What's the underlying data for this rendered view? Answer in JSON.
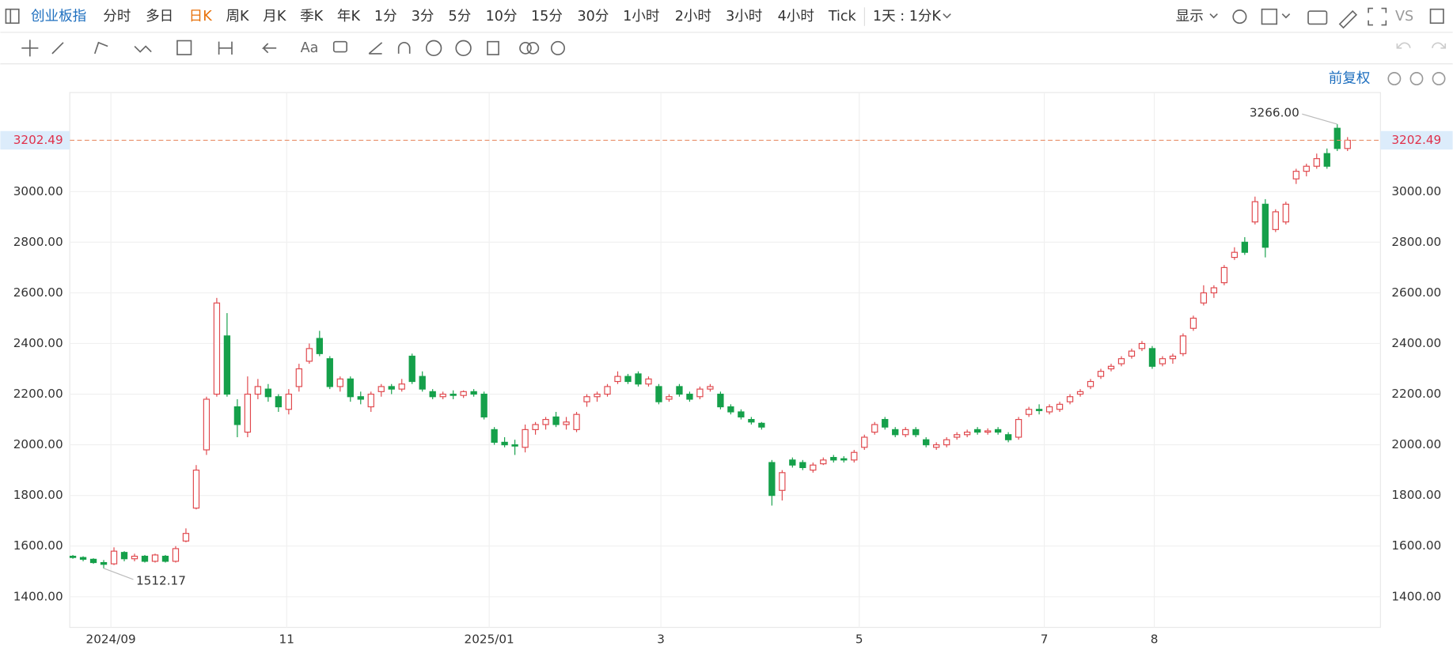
{
  "toolbar": {
    "symbol": "创业板指",
    "periods": [
      "分时",
      "多日",
      "日K",
      "周K",
      "月K",
      "季K",
      "年K",
      "1分",
      "3分",
      "5分",
      "10分",
      "15分",
      "30分",
      "1小时",
      "2小时",
      "3小时",
      "4小时",
      "Tick"
    ],
    "active_period": 2,
    "interval": "1天 : 1分K",
    "display": "显示"
  },
  "drawing_toolbar": {
    "text_tool": "Aa",
    "brand": "VS"
  },
  "adjust": "前复权",
  "chart_data": {
    "type": "candlestick",
    "up_color": "#e0474c",
    "down_color": "#15a04a",
    "grid": true,
    "xlim": [
      -0.3,
      127.2
    ],
    "xticks": [
      {
        "value": 3.7,
        "label": "2024/09"
      },
      {
        "value": 20.8,
        "label": "11"
      },
      {
        "value": 40.5,
        "label": "2025/01"
      },
      {
        "value": 57.2,
        "label": "3"
      },
      {
        "value": 76.5,
        "label": "5"
      },
      {
        "value": 94.5,
        "label": "7"
      },
      {
        "value": 105.2,
        "label": "8"
      }
    ],
    "ylim": [
      1279,
      3391
    ],
    "yticks": [
      {
        "value": 1400,
        "label": "1400.00"
      },
      {
        "value": 1600,
        "label": "1600.00"
      },
      {
        "value": 1800,
        "label": "1800.00"
      },
      {
        "value": 2000,
        "label": "2000.00"
      },
      {
        "value": 2200,
        "label": "2200.00"
      },
      {
        "value": 2400,
        "label": "2400.00"
      },
      {
        "value": 2600,
        "label": "2600.00"
      },
      {
        "value": 2800,
        "label": "2800.00"
      },
      {
        "value": 3000,
        "label": "3000.00"
      }
    ],
    "last_price": {
      "value": 3202.49,
      "label": "3202.49"
    },
    "max_label": {
      "value": 3266,
      "label": "3266.00"
    },
    "min_label": {
      "value": 1512.17,
      "label": "1512.17"
    },
    "candles": [
      [
        1560,
        1565,
        1550,
        1555
      ],
      [
        1555,
        1560,
        1540,
        1548
      ],
      [
        1548,
        1552,
        1530,
        1535
      ],
      [
        1535,
        1545,
        1512.17,
        1528
      ],
      [
        1530,
        1595,
        1525,
        1580
      ],
      [
        1575,
        1580,
        1540,
        1550
      ],
      [
        1550,
        1570,
        1540,
        1560
      ],
      [
        1560,
        1565,
        1535,
        1540
      ],
      [
        1540,
        1570,
        1535,
        1565
      ],
      [
        1560,
        1565,
        1535,
        1540
      ],
      [
        1540,
        1600,
        1535,
        1590
      ],
      [
        1620,
        1670,
        1615,
        1650
      ],
      [
        1750,
        1920,
        1745,
        1900
      ],
      [
        1980,
        2190,
        1960,
        2180
      ],
      [
        2200,
        2580,
        2190,
        2560
      ],
      [
        2430,
        2520,
        2190,
        2200
      ],
      [
        2150,
        2180,
        2030,
        2080
      ],
      [
        2050,
        2270,
        2030,
        2200
      ],
      [
        2200,
        2260,
        2180,
        2230
      ],
      [
        2220,
        2240,
        2170,
        2190
      ],
      [
        2190,
        2200,
        2130,
        2150
      ],
      [
        2140,
        2220,
        2120,
        2200
      ],
      [
        2230,
        2320,
        2210,
        2300
      ],
      [
        2330,
        2400,
        2320,
        2380
      ],
      [
        2420,
        2450,
        2350,
        2360
      ],
      [
        2340,
        2350,
        2220,
        2230
      ],
      [
        2230,
        2270,
        2210,
        2260
      ],
      [
        2260,
        2270,
        2170,
        2190
      ],
      [
        2190,
        2210,
        2160,
        2180
      ],
      [
        2150,
        2210,
        2130,
        2200
      ],
      [
        2210,
        2240,
        2190,
        2230
      ],
      [
        2230,
        2240,
        2200,
        2220
      ],
      [
        2220,
        2260,
        2210,
        2240
      ],
      [
        2350,
        2360,
        2240,
        2250
      ],
      [
        2270,
        2290,
        2210,
        2220
      ],
      [
        2210,
        2220,
        2180,
        2190
      ],
      [
        2190,
        2210,
        2180,
        2200
      ],
      [
        2200,
        2215,
        2180,
        2195
      ],
      [
        2195,
        2215,
        2185,
        2210
      ],
      [
        2210,
        2220,
        2190,
        2200
      ],
      [
        2200,
        2210,
        2100,
        2110
      ],
      [
        2060,
        2070,
        2000,
        2010
      ],
      [
        2010,
        2030,
        1990,
        2000
      ],
      [
        2000,
        2020,
        1960,
        1995
      ],
      [
        1990,
        2080,
        1970,
        2060
      ],
      [
        2060,
        2090,
        2040,
        2080
      ],
      [
        2080,
        2110,
        2060,
        2100
      ],
      [
        2110,
        2130,
        2070,
        2080
      ],
      [
        2080,
        2110,
        2060,
        2090
      ],
      [
        2060,
        2130,
        2050,
        2120
      ],
      [
        2170,
        2200,
        2150,
        2190
      ],
      [
        2190,
        2210,
        2170,
        2200
      ],
      [
        2200,
        2240,
        2190,
        2230
      ],
      [
        2250,
        2290,
        2240,
        2270
      ],
      [
        2270,
        2280,
        2240,
        2250
      ],
      [
        2280,
        2290,
        2230,
        2240
      ],
      [
        2240,
        2270,
        2230,
        2260
      ],
      [
        2230,
        2240,
        2160,
        2170
      ],
      [
        2180,
        2200,
        2170,
        2190
      ],
      [
        2230,
        2240,
        2190,
        2200
      ],
      [
        2200,
        2210,
        2170,
        2180
      ],
      [
        2190,
        2230,
        2180,
        2220
      ],
      [
        2220,
        2240,
        2210,
        2230
      ],
      [
        2200,
        2210,
        2140,
        2150
      ],
      [
        2150,
        2160,
        2120,
        2130
      ],
      [
        2130,
        2140,
        2100,
        2110
      ],
      [
        2100,
        2110,
        2080,
        2090
      ],
      [
        2085,
        2090,
        2060,
        2070
      ],
      [
        1930,
        1940,
        1760,
        1800
      ],
      [
        1820,
        1900,
        1780,
        1890
      ],
      [
        1940,
        1950,
        1910,
        1920
      ],
      [
        1930,
        1940,
        1900,
        1910
      ],
      [
        1900,
        1930,
        1890,
        1920
      ],
      [
        1925,
        1950,
        1920,
        1940
      ],
      [
        1950,
        1960,
        1930,
        1940
      ],
      [
        1945,
        1955,
        1930,
        1940
      ],
      [
        1940,
        1980,
        1930,
        1970
      ],
      [
        1990,
        2040,
        1980,
        2030
      ],
      [
        2050,
        2090,
        2040,
        2080
      ],
      [
        2100,
        2110,
        2060,
        2070
      ],
      [
        2060,
        2070,
        2030,
        2040
      ],
      [
        2040,
        2070,
        2030,
        2060
      ],
      [
        2060,
        2070,
        2030,
        2040
      ],
      [
        2020,
        2030,
        1990,
        2000
      ],
      [
        1990,
        2010,
        1980,
        2000
      ],
      [
        2000,
        2030,
        1990,
        2020
      ],
      [
        2030,
        2050,
        2020,
        2040
      ],
      [
        2040,
        2060,
        2030,
        2050
      ],
      [
        2060,
        2070,
        2040,
        2050
      ],
      [
        2050,
        2065,
        2040,
        2055
      ],
      [
        2060,
        2070,
        2040,
        2050
      ],
      [
        2040,
        2050,
        2010,
        2020
      ],
      [
        2030,
        2110,
        2020,
        2100
      ],
      [
        2120,
        2150,
        2110,
        2140
      ],
      [
        2140,
        2160,
        2120,
        2135
      ],
      [
        2130,
        2160,
        2120,
        2150
      ],
      [
        2140,
        2170,
        2130,
        2160
      ],
      [
        2170,
        2200,
        2160,
        2190
      ],
      [
        2200,
        2220,
        2190,
        2210
      ],
      [
        2230,
        2260,
        2220,
        2250
      ],
      [
        2270,
        2300,
        2260,
        2290
      ],
      [
        2300,
        2320,
        2290,
        2310
      ],
      [
        2320,
        2350,
        2310,
        2340
      ],
      [
        2350,
        2380,
        2340,
        2370
      ],
      [
        2380,
        2410,
        2370,
        2400
      ],
      [
        2380,
        2390,
        2300,
        2310
      ],
      [
        2320,
        2350,
        2310,
        2340
      ],
      [
        2340,
        2360,
        2320,
        2350
      ],
      [
        2360,
        2440,
        2350,
        2430
      ],
      [
        2460,
        2510,
        2450,
        2500
      ],
      [
        2560,
        2630,
        2550,
        2600
      ],
      [
        2600,
        2630,
        2580,
        2620
      ],
      [
        2640,
        2710,
        2630,
        2700
      ],
      [
        2740,
        2780,
        2730,
        2760
      ],
      [
        2800,
        2820,
        2750,
        2760
      ],
      [
        2880,
        2980,
        2870,
        2960
      ],
      [
        2950,
        2970,
        2740,
        2780
      ],
      [
        2850,
        2930,
        2840,
        2920
      ],
      [
        2880,
        2960,
        2870,
        2950
      ],
      [
        3050,
        3090,
        3030,
        3080
      ],
      [
        3080,
        3110,
        3060,
        3100
      ],
      [
        3100,
        3150,
        3090,
        3130
      ],
      [
        3150,
        3170,
        3090,
        3100
      ],
      [
        3250,
        3266,
        3160,
        3170
      ],
      [
        3170,
        3215,
        3160,
        3202.49
      ]
    ]
  }
}
